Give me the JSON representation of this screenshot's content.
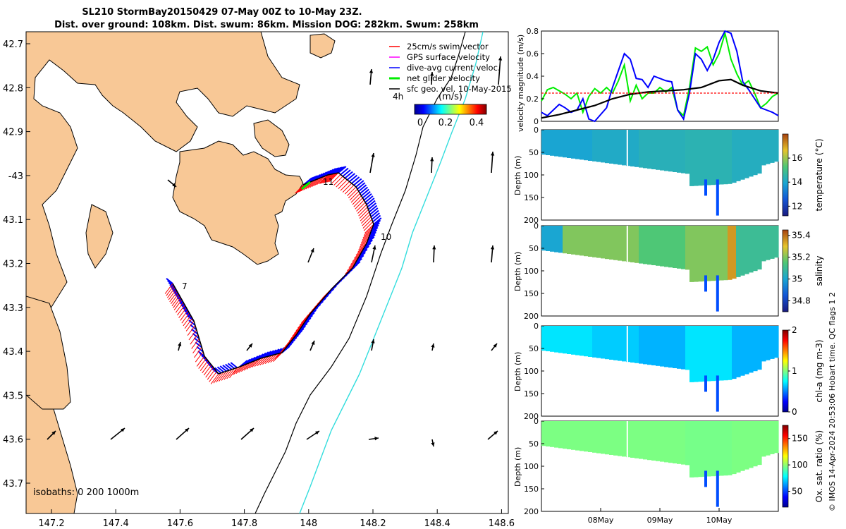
{
  "header": {
    "title_line1": "SL210 StormBay20150429 07-May 00Z to 10-May 23Z.",
    "title_line2": "Dist. over ground: 108km. Dist. swum: 86km. Mission DOG: 282km. Swum: 258km"
  },
  "colors": {
    "land": "#f8c896",
    "swim": "#ff0000",
    "gps": "#ff00ff",
    "dive_avg": "#0000ff",
    "net": "#00ee00",
    "geo": "#000000",
    "isobath_200": "#000000",
    "isobath_1000": "#33dddd",
    "magnitude_line": "#000000"
  },
  "map": {
    "lon_ticks": [
      "147.2",
      "147.4",
      "147.6",
      "147.8",
      "148",
      "148.2",
      "148.4",
      "148.6"
    ],
    "lat_ticks": [
      "42.7",
      "42.8",
      "42.9",
      "-43",
      "43.1",
      "43.2",
      "43.3",
      "43.4",
      "43.5",
      "43.6",
      "43.7"
    ],
    "legend": [
      {
        "label": "25cm/s swim vector",
        "color": "#ff0000",
        "key": "swim"
      },
      {
        "label": "GPS surface velocity",
        "color": "#ff00ff",
        "key": "gps"
      },
      {
        "label": "dive-avg current veloc.",
        "color": "#0000ff",
        "key": "dive"
      },
      {
        "label": "net glider velocity",
        "color": "#00ee00",
        "key": "net"
      },
      {
        "label": "sfc geo. vel. 10-May-2015",
        "color": "#000000",
        "key": "geo"
      }
    ],
    "time_step_label": "4h",
    "colorbar_units": "(m/s)",
    "colorbar_ticks": [
      "0",
      "0.2",
      "0.4"
    ],
    "isobaths_label": "isobaths: 0   200  1000m",
    "day_labels": [
      "7",
      "10",
      "11"
    ]
  },
  "chart_data": [
    {
      "type": "line",
      "title": "velocity magnitude",
      "ylabel": "velocity magnitude (m/s)",
      "ylim": [
        0,
        0.8
      ],
      "y_ticks": [
        "0",
        "0.2",
        "0.4",
        "0.6",
        "0.8"
      ],
      "xlim": [
        7.0,
        11.0
      ],
      "series": [
        {
          "name": "net glider velocity",
          "color": "#00ee00",
          "x": [
            7.0,
            7.1,
            7.2,
            7.3,
            7.4,
            7.5,
            7.6,
            7.7,
            7.8,
            7.9,
            8.0,
            8.1,
            8.2,
            8.3,
            8.4,
            8.5,
            8.6,
            8.7,
            8.8,
            8.9,
            9.0,
            9.1,
            9.2,
            9.3,
            9.4,
            9.5,
            9.6,
            9.7,
            9.8,
            9.9,
            10.0,
            10.1,
            10.2,
            10.3,
            10.4,
            10.5,
            10.6,
            10.7,
            10.8,
            10.9,
            11.0
          ],
          "values": [
            0.18,
            0.28,
            0.3,
            0.27,
            0.24,
            0.2,
            0.25,
            0.08,
            0.22,
            0.29,
            0.25,
            0.3,
            0.25,
            0.36,
            0.5,
            0.18,
            0.32,
            0.2,
            0.25,
            0.25,
            0.3,
            0.26,
            0.3,
            0.1,
            0.05,
            0.3,
            0.65,
            0.62,
            0.66,
            0.5,
            0.6,
            0.78,
            0.55,
            0.42,
            0.32,
            0.36,
            0.25,
            0.12,
            0.16,
            0.22,
            0.25
          ]
        },
        {
          "name": "dive-avg current veloc.",
          "color": "#0000ff",
          "x": [
            7.0,
            7.1,
            7.2,
            7.3,
            7.4,
            7.5,
            7.6,
            7.7,
            7.8,
            7.9,
            8.0,
            8.1,
            8.2,
            8.3,
            8.4,
            8.5,
            8.6,
            8.7,
            8.8,
            8.9,
            9.0,
            9.1,
            9.2,
            9.3,
            9.4,
            9.5,
            9.6,
            9.7,
            9.8,
            9.9,
            10.0,
            10.1,
            10.2,
            10.3,
            10.4,
            10.5,
            10.6,
            10.7,
            10.8,
            10.9,
            11.0
          ],
          "values": [
            0.08,
            0.05,
            0.1,
            0.15,
            0.12,
            0.08,
            0.1,
            0.2,
            0.02,
            0.0,
            0.06,
            0.12,
            0.3,
            0.45,
            0.6,
            0.55,
            0.38,
            0.37,
            0.3,
            0.4,
            0.38,
            0.36,
            0.35,
            0.1,
            0.02,
            0.25,
            0.6,
            0.55,
            0.45,
            0.55,
            0.7,
            0.8,
            0.78,
            0.62,
            0.35,
            0.28,
            0.2,
            0.12,
            0.1,
            0.08,
            0.05
          ]
        },
        {
          "name": "speed magnitude",
          "color": "#000000",
          "x": [
            7.0,
            7.3,
            7.6,
            7.9,
            8.2,
            8.5,
            8.8,
            9.1,
            9.4,
            9.7,
            10.0,
            10.2,
            10.4,
            10.7,
            11.0
          ],
          "values": [
            0.03,
            0.06,
            0.1,
            0.14,
            0.2,
            0.24,
            0.26,
            0.27,
            0.28,
            0.3,
            0.36,
            0.37,
            0.32,
            0.27,
            0.25
          ]
        },
        {
          "name": "swim vector",
          "color": "#ff0000",
          "x": [
            7.0,
            11.0
          ],
          "values": [
            0.25,
            0.25
          ]
        }
      ]
    },
    {
      "type": "heatmap",
      "variable": "temperature",
      "ylabel": "Depth (m)",
      "colorbar_label": "temperature (°C)",
      "colorbar_ticks": [
        "12",
        "14",
        "16"
      ],
      "clim": [
        11.2,
        18
      ],
      "depth_ticks": [
        "0",
        "50",
        "100",
        "150",
        "200"
      ],
      "base_value": 14.2,
      "values_by_day": [
        13.9,
        14.1,
        14.3,
        14.4,
        14.2
      ]
    },
    {
      "type": "heatmap",
      "variable": "salinity",
      "ylabel": "Depth (m)",
      "colorbar_label": "salinity",
      "colorbar_ticks": [
        "34.8",
        "35",
        "35.2",
        "35.4"
      ],
      "clim": [
        34.7,
        35.45
      ],
      "depth_ticks": [
        "0",
        "50",
        "100",
        "150",
        "200"
      ],
      "base_value": 35.1,
      "values_by_day": [
        35.2,
        35.2,
        35.15,
        35.2,
        35.1
      ]
    },
    {
      "type": "heatmap",
      "variable": "chl-a",
      "ylabel": "Depth (m)",
      "colorbar_label": "chl-a (mg m-3)",
      "colorbar_ticks": [
        "0",
        "1",
        "2"
      ],
      "clim": [
        0,
        2
      ],
      "depth_ticks": [
        "0",
        "50",
        "100",
        "150",
        "200"
      ],
      "base_value": 0.65,
      "values_by_day": [
        0.7,
        0.65,
        0.6,
        0.7,
        0.6
      ]
    },
    {
      "type": "heatmap",
      "variable": "oxygen",
      "ylabel": "Depth (m)",
      "colorbar_label": "Ox. sat. ratio (%)",
      "colorbar_ticks": [
        "50",
        "100",
        "150"
      ],
      "clim": [
        20,
        175
      ],
      "depth_ticks": [
        "0",
        "50",
        "100",
        "150",
        "200"
      ],
      "base_value": 97,
      "values_by_day": [
        97,
        97,
        97,
        96,
        97
      ]
    }
  ],
  "time_axis": {
    "labels": [
      "08May",
      "09May",
      "10May"
    ],
    "positions": [
      8.0,
      9.0,
      10.0
    ]
  },
  "side_text": "© IMOS 14-Apr-2024 20:53:06 Hobart time. QC flags 1  2"
}
